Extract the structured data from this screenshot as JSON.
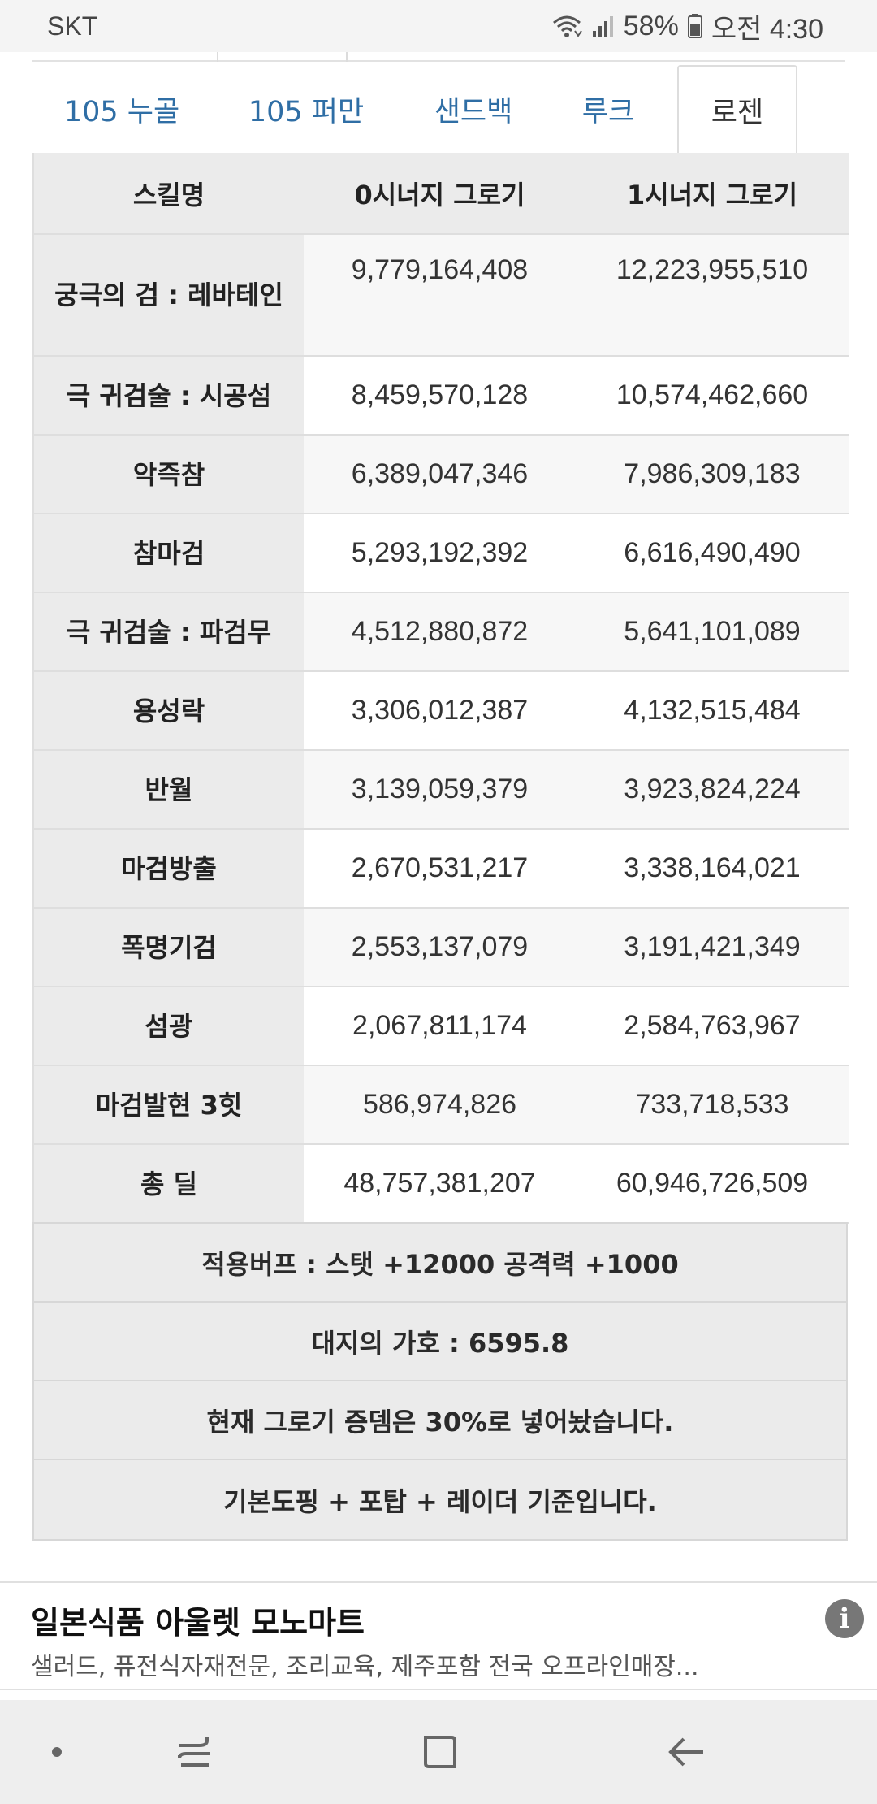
{
  "status": {
    "carrier": "SKT",
    "battery": "58%",
    "time": "오전 4:30"
  },
  "tabs": [
    {
      "label": "105 누골"
    },
    {
      "label": "105 퍼만"
    },
    {
      "label": "샌드백"
    },
    {
      "label": "루크"
    },
    {
      "label": "로젠",
      "active": true
    }
  ],
  "table": {
    "headers": [
      "스킬명",
      "0시너지 그로기",
      "1시너지 그로기"
    ],
    "rows": [
      {
        "name": "궁극의 검 : 레바테인",
        "v0": "9,779,164,408",
        "v1": "12,223,955,510"
      },
      {
        "name": "극 귀검술 : 시공섬",
        "v0": "8,459,570,128",
        "v1": "10,574,462,660"
      },
      {
        "name": "악즉참",
        "v0": "6,389,047,346",
        "v1": "7,986,309,183"
      },
      {
        "name": "참마검",
        "v0": "5,293,192,392",
        "v1": "6,616,490,490"
      },
      {
        "name": "극 귀검술 : 파검무",
        "v0": "4,512,880,872",
        "v1": "5,641,101,089"
      },
      {
        "name": "용성락",
        "v0": "3,306,012,387",
        "v1": "4,132,515,484"
      },
      {
        "name": "반월",
        "v0": "3,139,059,379",
        "v1": "3,923,824,224"
      },
      {
        "name": "마검방출",
        "v0": "2,670,531,217",
        "v1": "3,338,164,021"
      },
      {
        "name": "폭명기검",
        "v0": "2,553,137,079",
        "v1": "3,191,421,349"
      },
      {
        "name": "섬광",
        "v0": "2,067,811,174",
        "v1": "2,584,763,967"
      },
      {
        "name": "마검발현 3힛",
        "v0": "586,974,826",
        "v1": "733,718,533"
      },
      {
        "name": "총 딜",
        "v0": "48,757,381,207",
        "v1": "60,946,726,509"
      }
    ],
    "notes": [
      "적용버프 : 스탯 +12000 공격력 +1000",
      "대지의 가호 : 6595.8",
      "현재 그로기 증뎀은 30%로 넣어놨습니다.",
      "기본도핑 + 포탑 + 레이더 기준입니다."
    ]
  },
  "ad": {
    "title": "일본식품 아울렛 모노마트",
    "description": "샐러드, 퓨전식자재전문, 조리교육, 제주포함 전국 오프라인매장...",
    "info_icon": "i"
  },
  "navbar": {
    "icons": [
      "dot-icon",
      "recent-apps-icon",
      "home-icon",
      "back-icon"
    ]
  },
  "colors": {
    "tab_link": "#2f6ea5",
    "header_bg": "#ebebeb",
    "nav_bg": "#eeeeee"
  }
}
